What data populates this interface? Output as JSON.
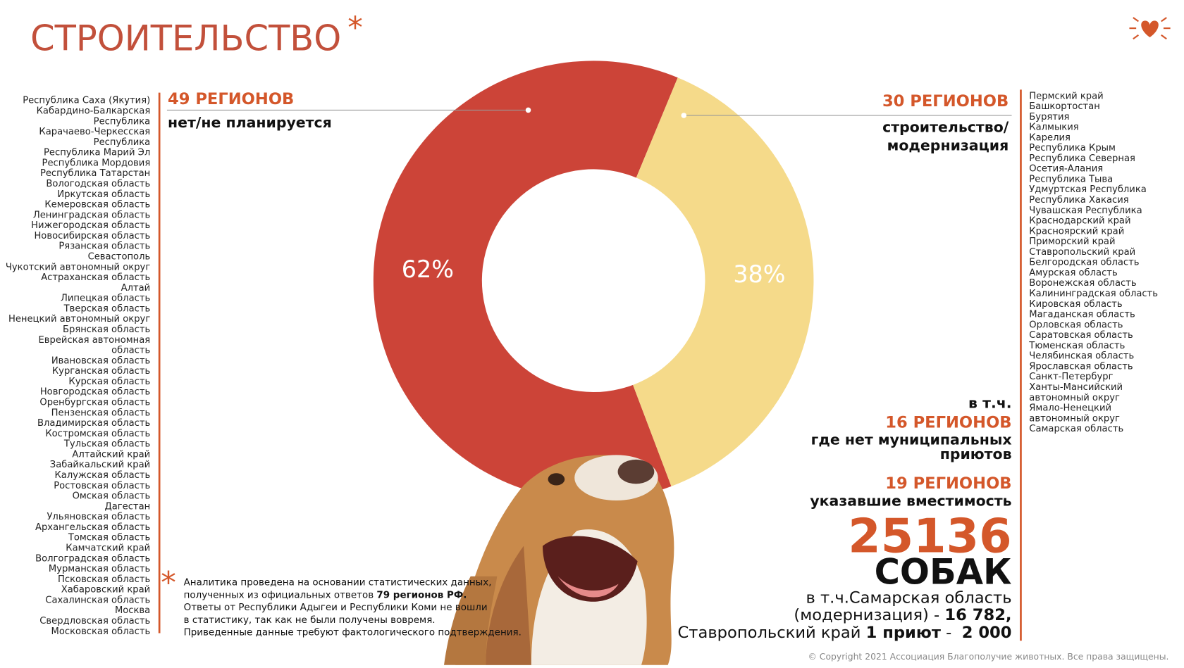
{
  "chart_data": {
    "type": "donut",
    "title": "СТРОИТЕЛЬСТВО",
    "title_mark": "*",
    "values": [
      62,
      38
    ],
    "value_labels": [
      "62%",
      "38%"
    ],
    "colors": [
      "#cc4438",
      "#f5da8a"
    ],
    "segment_headings": [
      "49 РЕГИОНОВ",
      "30 РЕГИОНОВ"
    ],
    "segment_captions": [
      [
        "нет/не планируется"
      ],
      [
        "строительство/",
        "модернизация"
      ]
    ]
  },
  "regions_left": [
    "Республика Саха (Якутия)",
    "Кабардино-Балкарская",
    "Республика",
    "Карачаево-Черкесская",
    "Республика",
    "Республика Марий Эл",
    "Республика Мордовия",
    "Республика Татарстан",
    "Вологодская область",
    "Иркутская область",
    "Кемеровская область",
    "Ленинградская область",
    "Нижегородская область",
    "Новосибирская область",
    "Рязанская область",
    "Севастополь",
    "Чукотский автономный округ",
    "Астраханская область",
    "Алтай",
    "Липецкая область",
    "Тверская область",
    "Ненецкий автономный округ",
    "Брянская область",
    "Еврейская автономная",
    "область",
    "Ивановская область",
    "Курганская область",
    "Курская область",
    "Новгородская область",
    "Оренбургская область",
    "Пензенская область",
    "Владимирская область",
    "Костромская область",
    "Тульская область",
    "Алтайский край",
    "Забайкальский край",
    "Калужская область",
    "Ростовская область",
    "Омская область",
    "Дагестан",
    "Ульяновская область",
    "Архангельская область",
    "Томская область",
    "Камчатский край",
    "Волгоградская область",
    "Мурманская область",
    "Псковская область",
    "Хабаровский край",
    "Сахалинская область",
    "Москва",
    "Свердловская область",
    "Московская область"
  ],
  "regions_right": [
    "Пермский край",
    "Башкортостан",
    "Бурятия",
    "Калмыкия",
    "Карелия",
    "Республика Крым",
    "Республика Северная",
    "Осетия-Алания",
    "Республика Тыва",
    "Удмуртская Республика",
    "Республика Хакасия",
    "Чувашская Республика",
    "Краснодарский край",
    "Красноярский край",
    "Приморский край",
    "Ставропольский край",
    "Белгородская область",
    "Амурская область",
    "Воронежская область",
    "Калининградская область",
    "Кировская область",
    "Магаданская область",
    "Орловская область",
    "Саратовская область",
    "Тюменская область",
    "Челябинская область",
    "Ярославская область",
    "Санкт-Петербург",
    "Ханты-Мансийский",
    "автономный округ",
    "Ямало-Ненецкий",
    "автономный округ",
    "Самарская область"
  ],
  "summary": {
    "lead": "в т.ч.",
    "heading_1": "16 РЕГИОНОВ",
    "caption_1": [
      "где нет муниципальных",
      "приютов"
    ],
    "heading_2": "19 РЕГИОНОВ",
    "caption_2": "указавшие вместимость",
    "count": "25136",
    "count_unit": "СОБАК",
    "details": [
      [
        {
          "text": "в т.ч.Самарская область"
        }
      ],
      [
        {
          "text": "(модернизация) - "
        },
        {
          "text": "16 782,",
          "bold": true
        }
      ],
      [
        {
          "text": "Ставропольский край "
        },
        {
          "text": "1 приют",
          "bold": true
        },
        {
          "text": " -  "
        },
        {
          "text": "2 000",
          "bold": true
        }
      ]
    ]
  },
  "footnote": {
    "mark": "*",
    "lines": [
      [
        {
          "text": "Аналитика проведена на основании статистических данных,"
        }
      ],
      [
        {
          "text": "полученных из официальных ответов "
        },
        {
          "text": "79 регионов РФ.",
          "bold": true
        }
      ],
      [
        {
          "text": "Ответы от Республики Адыгеи и Республики Коми не вошли"
        }
      ],
      [
        {
          "text": "в статистику, так как не были получены вовремя."
        }
      ],
      [
        {
          "text": "Приведенные данные требуют фактологического подтверждения."
        }
      ]
    ]
  },
  "copyright": "© Copyright 2021 Ассоциация Благополучие животных. Все права защищены."
}
